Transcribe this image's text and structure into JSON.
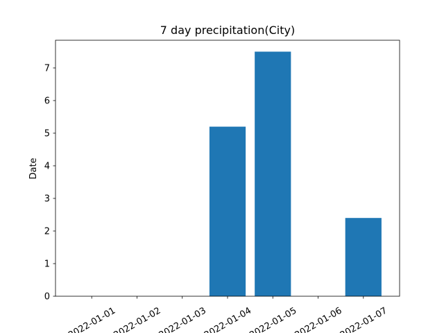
{
  "chart_data": {
    "type": "bar",
    "title": "7 day precipitation(City)",
    "xlabel": "",
    "ylabel": "Date",
    "categories": [
      "2022-01-01",
      "2022-01-02",
      "2022-01-03",
      "2022-01-04",
      "2022-01-05",
      "2022-01-06",
      "2022-01-07"
    ],
    "values": [
      0,
      0,
      0,
      5.2,
      7.5,
      0,
      2.4
    ],
    "ylim": [
      0,
      7.85
    ],
    "yticks": [
      0,
      1,
      2,
      3,
      4,
      5,
      6,
      7
    ],
    "grid": false,
    "bar_color": "#1f77b4"
  }
}
